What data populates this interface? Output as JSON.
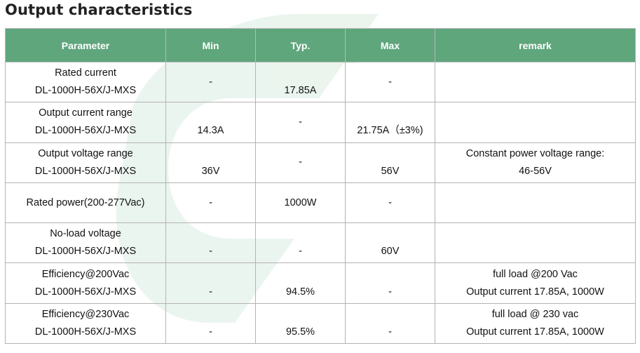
{
  "title": "Output characteristics",
  "columns": [
    "Parameter",
    "Min",
    "Typ.",
    "Max",
    "remark"
  ],
  "rows": [
    {
      "param_line1": "Rated current",
      "param_line2": "DL-1000H-56X/J-MXS",
      "min": "-",
      "typ": "17.85A",
      "max": "-",
      "remark_line1": "",
      "remark_line2": ""
    },
    {
      "param_line1": "Output current range",
      "param_line2": "DL-1000H-56X/J-MXS",
      "min": "14.3A",
      "typ": "-",
      "max": "21.75A（±3%)",
      "remark_line1": "",
      "remark_line2": ""
    },
    {
      "param_line1": "Output voltage range",
      "param_line2": "DL-1000H-56X/J-MXS",
      "min": "36V",
      "typ": "-",
      "max": "56V",
      "remark_line1": "Constant power voltage range:",
      "remark_line2": "46-56V"
    },
    {
      "param_line1": "Rated power(200-277Vac)",
      "param_line2": "",
      "min": "-",
      "typ": "1000W",
      "max": "-",
      "remark_line1": "",
      "remark_line2": ""
    },
    {
      "param_line1": "No-load voltage",
      "param_line2": "DL-1000H-56X/J-MXS",
      "min": "-",
      "typ": "-",
      "max": "60V",
      "remark_line1": "",
      "remark_line2": ""
    },
    {
      "param_line1": "Efficiency@200Vac",
      "param_line2": "DL-1000H-56X/J-MXS",
      "min": "-",
      "typ": "94.5%",
      "max": "-",
      "remark_line1": "full load @200 Vac",
      "remark_line2": "Output current 17.85A, 1000W"
    },
    {
      "param_line1": "Efficiency@230Vac",
      "param_line2": "DL-1000H-56X/J-MXS",
      "min": "-",
      "typ": "95.5%",
      "max": "-",
      "remark_line1": "full load @ 230 vac",
      "remark_line2": "Output current 17.85A, 1000W"
    }
  ],
  "colors": {
    "header_bg": "#5fa67c",
    "header_text": "#ffffff",
    "border": "#b3b3b3",
    "watermark": "#e6f2ea"
  }
}
